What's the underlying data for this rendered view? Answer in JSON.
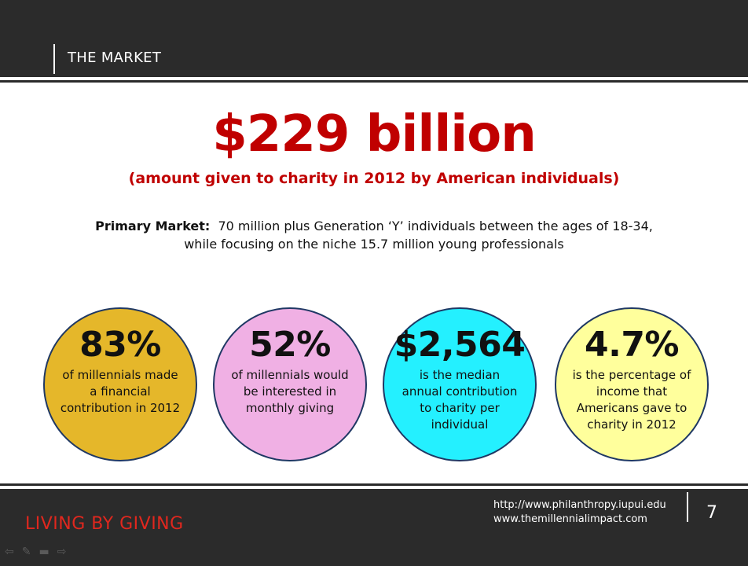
{
  "header": {
    "section_title": "THE MARKET"
  },
  "headline": {
    "amount": "$229 billion",
    "caption": "(amount given to charity in 2012 by American individuals)"
  },
  "market": {
    "label": "Primary Market:",
    "line1": "70 million plus Generation ‘Y’ individuals between the ages of 18-34,",
    "line2": "while focusing on the niche 15.7 million young professionals"
  },
  "stats": [
    {
      "value": "83%",
      "lines": [
        "of millennials made",
        "a financial",
        "contribution in 2012"
      ],
      "color": "#e5b72a"
    },
    {
      "value": "52%",
      "lines": [
        "of millennials would",
        "be interested in",
        "monthly giving"
      ],
      "color": "#f0b0e4"
    },
    {
      "value": "$2,564",
      "lines": [
        "is the median",
        "annual contribution",
        "to charity per",
        "individual"
      ],
      "color": "#24f0ff"
    },
    {
      "value": "4.7%",
      "lines": [
        "is the percentage of",
        "income that",
        "Americans gave to",
        "charity in 2012"
      ],
      "color": "#ffff9c"
    }
  ],
  "footer": {
    "brand": "LIVING BY GIVING",
    "url1": "http://www.philanthropy.iupui.edu",
    "url2": "www.themillennialimpact.com",
    "page_number": "7"
  },
  "nav": {
    "back_icon": "⇦",
    "pen_icon": "✎",
    "menu_icon": "▬",
    "forward_icon": "⇨"
  },
  "colors": {
    "accent_red": "#c00000",
    "band_dark": "#2b2b2b",
    "brand_red": "#e0271e"
  }
}
